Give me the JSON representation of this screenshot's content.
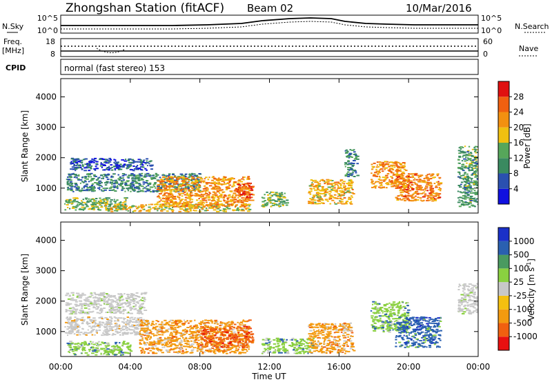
{
  "header": {
    "station": "Zhongshan Station (fitACF)",
    "beam": "Beam 02",
    "date": "10/Mar/2016"
  },
  "nsky_panel": {
    "left_label": "N.Sky",
    "left_ticks": [
      "10^5",
      "10^0"
    ],
    "right_label": "N.Search",
    "right_ticks": [
      "10^5",
      "10^0"
    ]
  },
  "freq_panel": {
    "left_label_1": "Freq.",
    "left_label_2": "[MHz]",
    "left_ticks": [
      "18",
      "8"
    ],
    "right_label": "Nave",
    "right_ticks": [
      "60",
      "0"
    ]
  },
  "cpid_panel": {
    "label": "CPID",
    "text": "normal (fast stereo) 153"
  },
  "colors": {
    "power": [
      "#1010e0",
      "#2a50b0",
      "#3a8a60",
      "#56a65a",
      "#f0c010",
      "#f39010",
      "#f06010",
      "#e01010"
    ],
    "velocity": [
      "#e81010",
      "#f06010",
      "#f39a10",
      "#f4c010",
      "#c8c8c8",
      "#8ad040",
      "#4a9a60",
      "#2a60b0",
      "#1a30c8"
    ]
  },
  "chart_data": [
    {
      "type": "heatmap",
      "name": "power",
      "ylabel": "Slant Range [km]",
      "yticks": [
        "4000",
        "3000",
        "2000",
        "1000"
      ],
      "ylim": [
        180,
        4600
      ],
      "xlim": [
        0,
        24
      ],
      "colorbar_label": "Power [dB]",
      "colorbar_ticks": [
        "28",
        "24",
        "20",
        "16",
        "12",
        "8",
        "4"
      ],
      "colorbar_range": [
        0,
        32
      ],
      "regions": [
        {
          "t0": 0.2,
          "t1": 3.8,
          "r0": 300,
          "r1": 700,
          "v": 14
        },
        {
          "t0": 0.3,
          "t1": 8.0,
          "r0": 900,
          "r1": 1500,
          "v": 10
        },
        {
          "t0": 0.5,
          "t1": 5.2,
          "r0": 1600,
          "r1": 2000,
          "v": 6
        },
        {
          "t0": 2.5,
          "t1": 10.8,
          "r0": 250,
          "r1": 500,
          "v": 18
        },
        {
          "t0": 5.5,
          "t1": 10.8,
          "r0": 400,
          "r1": 1400,
          "v": 22
        },
        {
          "t0": 10.0,
          "t1": 11.0,
          "r0": 600,
          "r1": 1200,
          "v": 26
        },
        {
          "t0": 11.5,
          "t1": 13.0,
          "r0": 400,
          "r1": 900,
          "v": 14
        },
        {
          "t0": 14.2,
          "t1": 16.8,
          "r0": 500,
          "r1": 1300,
          "v": 20
        },
        {
          "t0": 16.3,
          "t1": 17.0,
          "r0": 1400,
          "r1": 2300,
          "v": 10
        },
        {
          "t0": 17.8,
          "t1": 19.8,
          "r0": 1000,
          "r1": 1900,
          "v": 22
        },
        {
          "t0": 19.2,
          "t1": 21.8,
          "r0": 600,
          "r1": 1500,
          "v": 24
        },
        {
          "t0": 22.8,
          "t1": 24.0,
          "r0": 400,
          "r1": 2400,
          "v": 12
        }
      ]
    },
    {
      "type": "heatmap",
      "name": "velocity",
      "ylabel": "Slant Range [km]",
      "yticks": [
        "4000",
        "3000",
        "2000",
        "1000"
      ],
      "ylim": [
        180,
        4600
      ],
      "xlim": [
        0,
        24
      ],
      "colorbar_label": "Velocity [m s^-1]",
      "colorbar_ticks": [
        "1000",
        "500",
        "100",
        "25",
        "-25",
        "-100",
        "-500",
        "-1000"
      ],
      "xlabel": "Time UT",
      "xticks": [
        "00:00",
        "04:00",
        "08:00",
        "12:00",
        "16:00",
        "20:00",
        "00:00"
      ],
      "regions": [
        {
          "t0": 0.2,
          "t1": 5.0,
          "r0": 900,
          "r1": 1500,
          "v": "-25"
        },
        {
          "t0": 0.2,
          "t1": 4.8,
          "r0": 1600,
          "r1": 2300,
          "v": "25"
        },
        {
          "t0": 0.3,
          "t1": 4.0,
          "r0": 250,
          "r1": 700,
          "v": "100"
        },
        {
          "t0": 4.5,
          "t1": 10.8,
          "r0": 300,
          "r1": 1400,
          "v": "-100"
        },
        {
          "t0": 8.0,
          "t1": 11.0,
          "r0": 500,
          "r1": 1200,
          "v": "-500"
        },
        {
          "t0": 11.5,
          "t1": 14.5,
          "r0": 300,
          "r1": 800,
          "v": "100"
        },
        {
          "t0": 14.2,
          "t1": 16.8,
          "r0": 300,
          "r1": 1300,
          "v": "-100"
        },
        {
          "t0": 17.8,
          "t1": 20.0,
          "r0": 1000,
          "r1": 2000,
          "v": "100"
        },
        {
          "t0": 19.2,
          "t1": 21.8,
          "r0": 500,
          "r1": 1500,
          "v": "500"
        },
        {
          "t0": 22.8,
          "t1": 24.0,
          "r0": 1600,
          "r1": 2600,
          "v": "25"
        }
      ]
    }
  ]
}
